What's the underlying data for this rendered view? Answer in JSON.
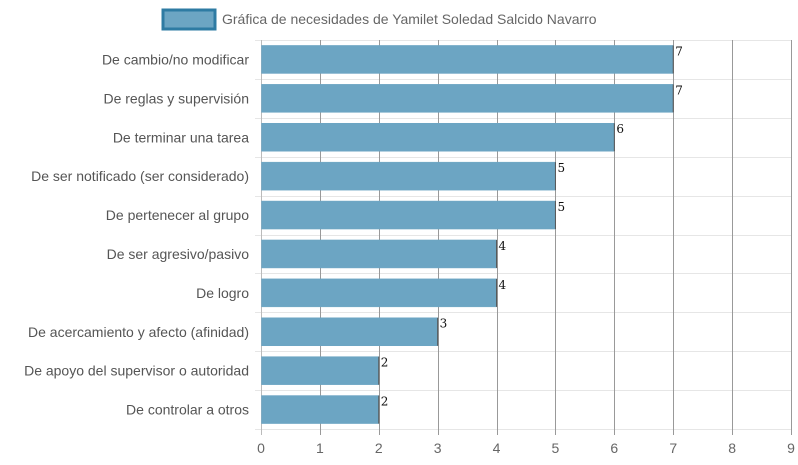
{
  "chart_data": {
    "type": "bar",
    "orientation": "horizontal",
    "categories": [
      "De cambio/no modificar",
      "De reglas y supervisión",
      "De terminar una tarea",
      "De ser notificado (ser considerado)",
      "De pertenecer al grupo",
      "De ser agresivo/pasivo",
      "De logro",
      "De acercamiento y afecto (afinidad)",
      "De apoyo del supervisor o autoridad",
      "De controlar a otros"
    ],
    "series": [
      {
        "name": "Gráfica de necesidades de Yamilet Soledad Salcido Navarro",
        "values": [
          7,
          7,
          6,
          5,
          5,
          4,
          4,
          3,
          2,
          2
        ],
        "color": "#6ca5c3",
        "border_color": "#2e7ba3"
      }
    ],
    "data_labels": [
      "7",
      "7",
      "6",
      "5",
      "5",
      "4",
      "4",
      "3",
      "2",
      "2"
    ],
    "x_ticks": [
      "0",
      "1",
      "2",
      "3",
      "4",
      "5",
      "6",
      "7",
      "8",
      "9"
    ],
    "xlim": [
      0,
      9
    ],
    "grid": true,
    "legend_position": "top",
    "title": "",
    "xlabel": "",
    "ylabel": ""
  }
}
